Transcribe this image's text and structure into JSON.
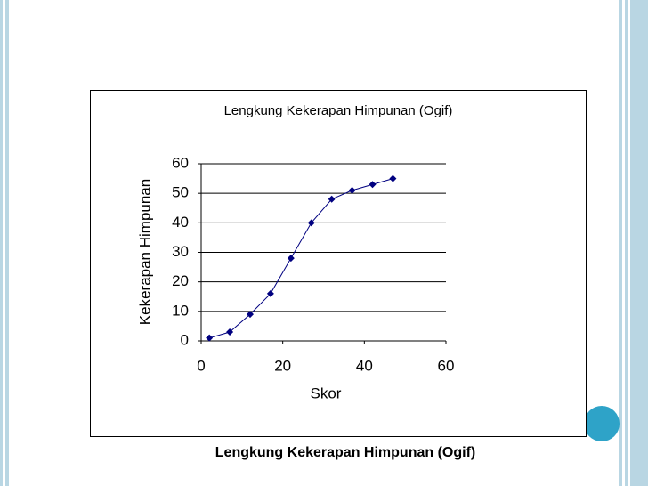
{
  "chart_data": {
    "type": "line",
    "title": "Lengkung Kekerapan Himpunan (Ogif)",
    "x_label": "Skor",
    "y_label": "Kekerapan Himpunan",
    "x": [
      2,
      7,
      12,
      17,
      22,
      27,
      32,
      37,
      42,
      47
    ],
    "values": [
      1,
      3,
      9,
      16,
      28,
      40,
      48,
      51,
      53,
      55
    ],
    "color": "#000080",
    "xlim": [
      0,
      60
    ],
    "xticks": [
      0,
      20,
      40,
      60
    ],
    "ylim": [
      0,
      60
    ],
    "yticks": [
      0,
      10,
      20,
      30,
      40,
      50,
      60
    ],
    "grid": true
  },
  "caption": "Lengkung Kekerapan Himpunan (Ogif)"
}
